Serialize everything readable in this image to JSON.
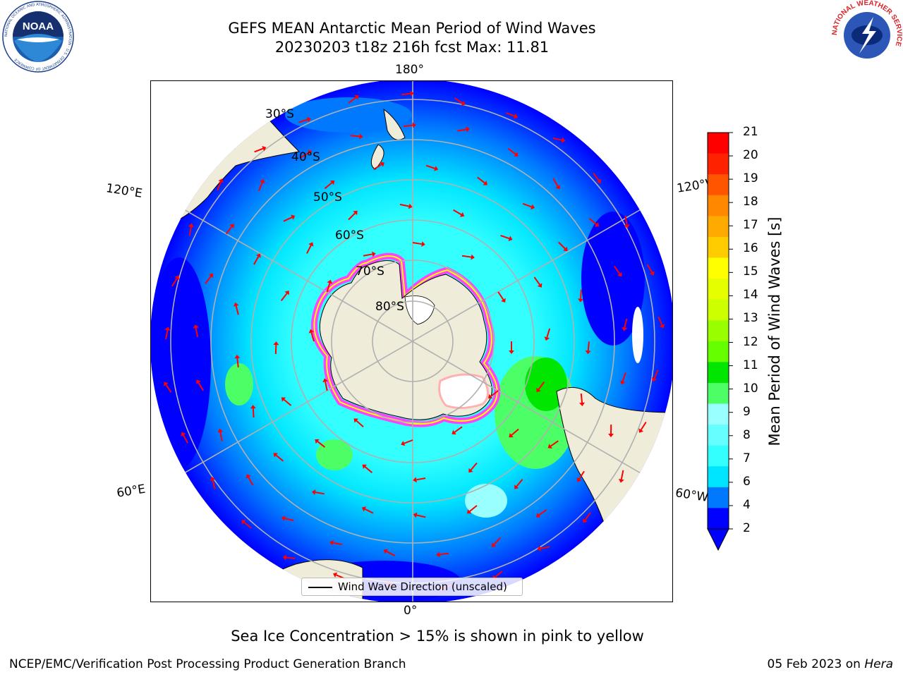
{
  "title": {
    "line1": "GEFS MEAN Antarctic Mean Period of Wind Waves",
    "line2": "20230203 t18z 216h fcst   Max: 11.81"
  },
  "map": {
    "meridian_labels": {
      "top": "180°",
      "bottom": "0°",
      "upper_left": "120°E",
      "upper_right": "120°W",
      "lower_left": "60°E",
      "lower_right": "60°W"
    },
    "latitude_labels": [
      "30°S",
      "40°S",
      "50°S",
      "60°S",
      "70°S",
      "80°S"
    ],
    "legend_label": "Wind Wave Direction (unscaled)",
    "arrow_color": "#ff0000",
    "land_color": "#efecda",
    "sea_ice_colors": [
      "#ff40ff",
      "#ffb0b0",
      "#ffff00"
    ]
  },
  "colorbar": {
    "label": "Mean Period of Wind Waves [s]",
    "ticks": [
      "2",
      "4",
      "6",
      "7",
      "8",
      "9",
      "10",
      "11",
      "12",
      "13",
      "14",
      "15",
      "16",
      "17",
      "18",
      "19",
      "20",
      "21"
    ],
    "colors": [
      "#0000ff",
      "#0079ff",
      "#00e5ff",
      "#33ffff",
      "#66ffff",
      "#99ffff",
      "#4dff66",
      "#00e600",
      "#66ff00",
      "#99ff00",
      "#ccff00",
      "#e6ff00",
      "#ffff00",
      "#ffcc00",
      "#ffaa00",
      "#ff8800",
      "#ff5500",
      "#ff2200",
      "#ff0000"
    ],
    "under_color": "#0000ff"
  },
  "subtitle": "Sea Ice Concentration > 15% is shown in pink to yellow",
  "footer": {
    "left": "NCEP/EMC/Verification Post Processing Product Generation Branch",
    "right_date": "05 Feb 2023 on ",
    "right_machine": "Hera"
  },
  "logos": {
    "left": "NOAA",
    "left_ring": "NATIONAL OCEANIC AND ATMOSPHERIC ADMINISTRATION · U.S. DEPARTMENT OF COMMERCE",
    "right_ring": "NATIONAL WEATHER SERVICE"
  }
}
